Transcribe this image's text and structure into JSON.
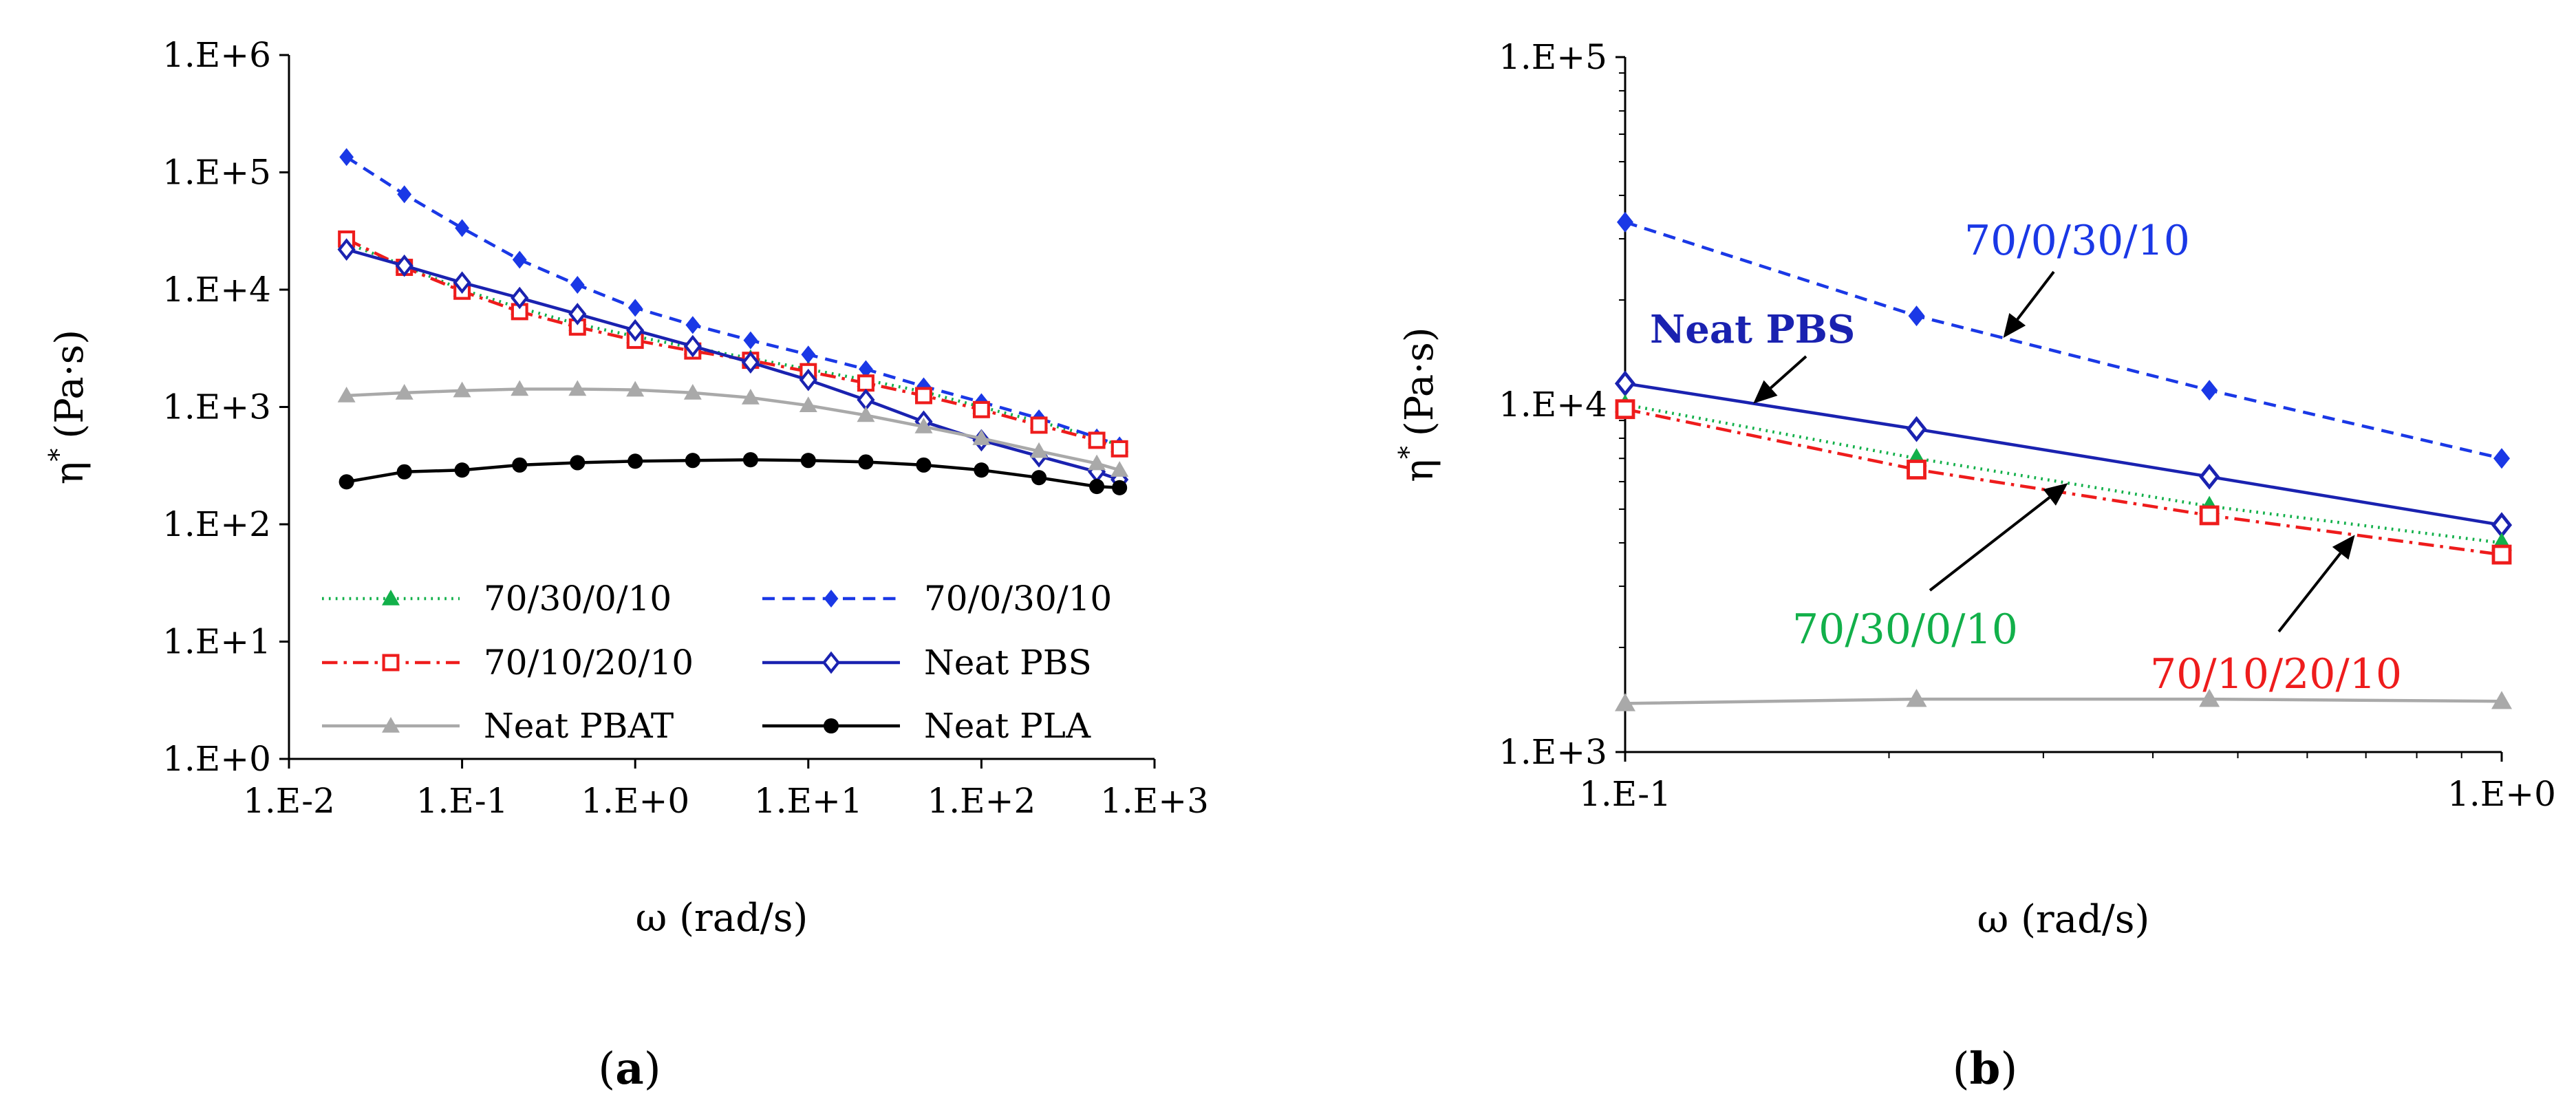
{
  "colors": {
    "green": "#12b04a",
    "red": "#ee1c1c",
    "blue_dashed": "#1a38e6",
    "blue_solid": "#1a22b0",
    "gray": "#a9a9a9",
    "black": "#000000"
  },
  "panel_labels": {
    "a": "a",
    "b": "b"
  },
  "chart_data": [
    {
      "id": "a",
      "type": "line",
      "log_x": true,
      "log_y": true,
      "xlabel": "ω (rad/s)",
      "ylabel": "η* (Pa·s)",
      "ylabel_main": "η",
      "ylabel_sup": "*",
      "ylabel_rest": "(Pa·s)",
      "xlim": [
        0.01,
        1000
      ],
      "ylim": [
        1,
        1000000
      ],
      "xticks": [
        0.01,
        0.1,
        1,
        10,
        100,
        1000
      ],
      "xtick_labels": [
        "1.E-2",
        "1.E-1",
        "1.E+0",
        "1.E+1",
        "1.E+2",
        "1.E+3"
      ],
      "yticks": [
        1,
        10,
        100,
        1000,
        10000,
        100000,
        1000000
      ],
      "ytick_labels": [
        "1.E+0",
        "1.E+1",
        "1.E+2",
        "1.E+3",
        "1.E+4",
        "1.E+5",
        "1.E+6"
      ],
      "legend": {
        "columns": 2,
        "placement": "bottom-left"
      },
      "series": [
        {
          "name": "70/30/0/10",
          "color_key": "green",
          "style": "dotted",
          "marker": "triangle-filled",
          "x": [
            0.0215,
            0.0464,
            0.1,
            0.215,
            0.464,
            1,
            2.15,
            4.64,
            10,
            21.5,
            46.4,
            100,
            215,
            464,
            628
          ],
          "y": [
            25000,
            16000,
            10000,
            7000,
            5100,
            4000,
            3200,
            2600,
            2100,
            1700,
            1350,
            1000,
            750,
            550,
            470
          ]
        },
        {
          "name": "70/0/30/10",
          "color_key": "blue_dashed",
          "style": "dashed",
          "marker": "diamond-filled",
          "x": [
            0.0215,
            0.0464,
            0.1,
            0.215,
            0.464,
            1,
            2.15,
            4.64,
            10,
            21.5,
            46.4,
            100,
            215,
            464,
            628
          ],
          "y": [
            135000,
            65000,
            33500,
            18000,
            11000,
            7000,
            5000,
            3700,
            2800,
            2100,
            1500,
            1100,
            800,
            550,
            470
          ]
        },
        {
          "name": "70/10/20/10",
          "color_key": "red",
          "style": "dashdot",
          "marker": "square-open",
          "x": [
            0.0215,
            0.0464,
            0.1,
            0.215,
            0.464,
            1,
            2.15,
            4.64,
            10,
            21.5,
            46.4,
            100,
            215,
            464,
            628
          ],
          "y": [
            27000,
            15500,
            9700,
            6500,
            4800,
            3700,
            3000,
            2500,
            2000,
            1600,
            1250,
            950,
            700,
            520,
            440
          ]
        },
        {
          "name": "Neat PBS",
          "color_key": "blue_solid",
          "style": "solid",
          "marker": "diamond-open",
          "x": [
            0.0215,
            0.0464,
            0.1,
            0.215,
            0.464,
            1,
            2.15,
            4.64,
            10,
            21.5,
            46.4,
            100,
            215,
            464,
            628
          ],
          "y": [
            22000,
            16000,
            11500,
            8500,
            6200,
            4500,
            3300,
            2400,
            1700,
            1150,
            750,
            520,
            380,
            280,
            240
          ]
        },
        {
          "name": "Neat PBAT",
          "color_key": "gray",
          "style": "solid",
          "marker": "triangle-filled",
          "x": [
            0.0215,
            0.0464,
            0.1,
            0.215,
            0.464,
            1,
            2.15,
            4.64,
            10,
            21.5,
            46.4,
            100,
            215,
            464,
            628
          ],
          "y": [
            1250,
            1320,
            1380,
            1420,
            1420,
            1400,
            1320,
            1200,
            1030,
            850,
            680,
            540,
            420,
            330,
            290
          ]
        },
        {
          "name": "Neat PLA",
          "color_key": "black",
          "style": "solid",
          "marker": "circle-filled",
          "x": [
            0.0215,
            0.0464,
            0.1,
            0.215,
            0.464,
            1,
            2.15,
            4.64,
            10,
            21.5,
            46.4,
            100,
            215,
            464,
            628
          ],
          "y": [
            230,
            280,
            290,
            320,
            335,
            345,
            350,
            355,
            350,
            340,
            320,
            290,
            250,
            210,
            205
          ]
        }
      ],
      "legend_order": [
        "70/30/0/10",
        "70/0/30/10",
        "70/10/20/10",
        "Neat PBS",
        "Neat PBAT",
        "Neat PLA"
      ]
    },
    {
      "id": "b",
      "type": "line",
      "log_x": true,
      "log_y": true,
      "xlabel": "ω (rad/s)",
      "ylabel": "η* (Pa·s)",
      "ylabel_main": "η",
      "ylabel_sup": "*",
      "ylabel_rest": "(Pa·s)",
      "xlim": [
        0.1,
        1
      ],
      "ylim": [
        1000,
        100000
      ],
      "xticks": [
        0.1,
        1
      ],
      "xtick_labels": [
        "1.E-1",
        "1.E+0"
      ],
      "yticks": [
        1000,
        10000,
        100000
      ],
      "ytick_labels": [
        "1.E+3",
        "1.E+4",
        "1.E+5"
      ],
      "series": [
        {
          "name": "70/0/30/10",
          "color_key": "blue_dashed",
          "style": "dashed",
          "marker": "diamond-filled",
          "x": [
            0.1,
            0.215,
            0.464,
            1
          ],
          "y": [
            33500,
            18000,
            11000,
            7000
          ]
        },
        {
          "name": "Neat PBS",
          "color_key": "blue_solid",
          "style": "solid",
          "marker": "diamond-open",
          "x": [
            0.1,
            0.215,
            0.464,
            1
          ],
          "y": [
            11500,
            8500,
            6200,
            4500
          ]
        },
        {
          "name": "70/30/0/10",
          "color_key": "green",
          "style": "dotted",
          "marker": "triangle-filled",
          "x": [
            0.1,
            0.215,
            0.464,
            1
          ],
          "y": [
            10000,
            7000,
            5100,
            4000
          ]
        },
        {
          "name": "70/10/20/10",
          "color_key": "red",
          "style": "dashdot",
          "marker": "square-open",
          "x": [
            0.1,
            0.215,
            0.464,
            1
          ],
          "y": [
            9700,
            6500,
            4800,
            3700
          ]
        },
        {
          "name": "Neat PBAT",
          "color_key": "gray",
          "style": "solid",
          "marker": "triangle-filled",
          "x": [
            0.1,
            0.215,
            0.464,
            1
          ],
          "y": [
            1380,
            1420,
            1420,
            1400
          ]
        }
      ],
      "annotations": [
        {
          "text": "70/0/30/10",
          "color_key": "blue_dashed",
          "bold": false,
          "target_series": "70/0/30/10",
          "target_x": 0.27
        },
        {
          "text": "Neat PBS",
          "color_key": "blue_solid",
          "bold": true,
          "target_series": "Neat PBS",
          "target_x": 0.14
        },
        {
          "text": "70/30/0/10",
          "color_key": "green",
          "bold": false,
          "target_series": "70/30/0/10",
          "target_x": 0.32
        },
        {
          "text": "70/10/20/10",
          "color_key": "red",
          "bold": false,
          "target_series": "70/10/20/10",
          "target_x": 0.68
        }
      ]
    }
  ]
}
